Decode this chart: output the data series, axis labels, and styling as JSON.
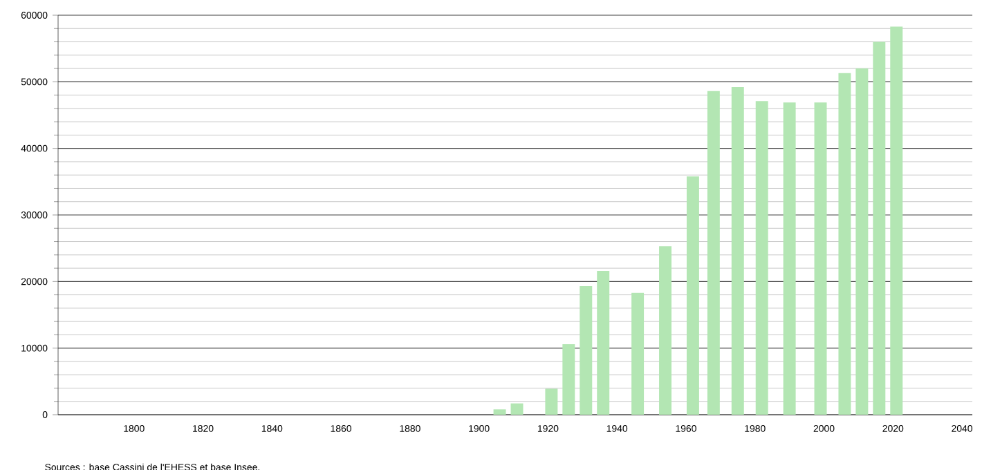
{
  "chart_data": {
    "type": "bar",
    "color": "#b3e6b3",
    "x": [
      1906,
      1911,
      1921,
      1926,
      1931,
      1936,
      1946,
      1954,
      1962,
      1968,
      1975,
      1982,
      1990,
      1999,
      2006,
      2011,
      2016,
      2021
    ],
    "values": [
      800,
      1700,
      3900,
      10600,
      19300,
      21600,
      18300,
      25300,
      35800,
      48600,
      49200,
      47100,
      46900,
      46900,
      51300,
      52000,
      56000,
      58300
    ],
    "xlim": [
      1778,
      2043
    ],
    "xticks": [
      1800,
      1820,
      1840,
      1860,
      1880,
      1900,
      1920,
      1940,
      1960,
      1980,
      2000,
      2020,
      2040
    ],
    "ylim": [
      0,
      60000
    ],
    "yticks": [
      0,
      {
        "value": 2000,
        "label": null
      },
      {
        "value": 4000,
        "label": null
      },
      {
        "value": 6000,
        "label": null
      },
      {
        "value": 8000,
        "label": null
      },
      10000,
      {
        "value": 12000,
        "label": null
      },
      {
        "value": 14000,
        "label": null
      },
      {
        "value": 16000,
        "label": null
      },
      {
        "value": 18000,
        "label": null
      },
      20000,
      {
        "value": 22000,
        "label": null
      },
      {
        "value": 24000,
        "label": null
      },
      {
        "value": 26000,
        "label": null
      },
      {
        "value": 28000,
        "label": null
      },
      30000,
      {
        "value": 32000,
        "label": null
      },
      {
        "value": 34000,
        "label": null
      },
      {
        "value": 36000,
        "label": null
      },
      {
        "value": 38000,
        "label": null
      },
      40000,
      {
        "value": 42000,
        "label": null
      },
      {
        "value": 44000,
        "label": null
      },
      {
        "value": 46000,
        "label": null
      },
      {
        "value": 48000,
        "label": null
      },
      50000,
      {
        "value": 52000,
        "label": null
      },
      {
        "value": 54000,
        "label": null
      },
      {
        "value": 56000,
        "label": null
      },
      {
        "value": 58000,
        "label": null
      },
      60000
    ],
    "grid": "y",
    "annotations": [
      "Sources : base Cassini de l'EHESS et base Insee."
    ]
  }
}
